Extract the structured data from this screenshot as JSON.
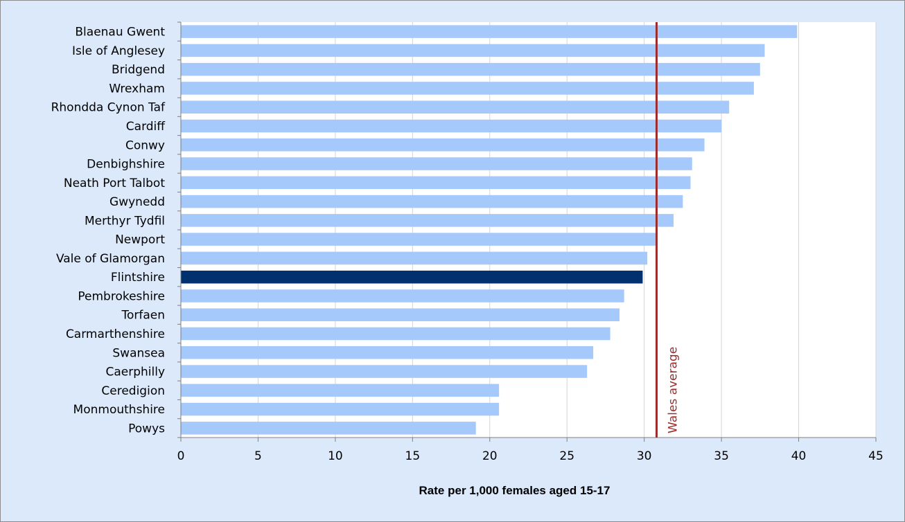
{
  "chart_data": {
    "type": "bar",
    "orientation": "horizontal",
    "categories": [
      "Blaenau Gwent",
      "Isle of Anglesey",
      "Bridgend",
      "Wrexham",
      "Rhondda Cynon Taf",
      "Cardiff",
      "Conwy",
      "Denbighshire",
      "Neath Port Talbot",
      "Gwynedd",
      "Merthyr Tydfil",
      "Newport",
      "Vale of Glamorgan",
      "Flintshire",
      "Pembrokeshire",
      "Torfaen",
      "Carmarthenshire",
      "Swansea",
      "Caerphilly",
      "Ceredigion",
      "Monmouthshire",
      "Powys"
    ],
    "values": [
      39.9,
      37.8,
      37.5,
      37.1,
      35.5,
      35.0,
      33.9,
      33.1,
      33.0,
      32.5,
      31.9,
      30.8,
      30.2,
      29.9,
      28.7,
      28.4,
      27.8,
      26.7,
      26.3,
      20.6,
      20.6,
      19.1
    ],
    "highlight": "Flintshire",
    "colors": {
      "bar": "#a6c9fb",
      "highlight": "#00306e",
      "reference": "#9b2d2d",
      "plot_bg": "#ffffff",
      "frame_bg": "#dbe9fb",
      "grid": "#d4d4d4"
    },
    "reference_line": {
      "value": 30.8,
      "label": "Wales average"
    },
    "xlim": [
      0,
      45
    ],
    "xticks": [
      0,
      5,
      10,
      15,
      20,
      25,
      30,
      35,
      40,
      45
    ],
    "title": "",
    "xlabel": "Rate per 1,000 females aged 15-17",
    "ylabel": "",
    "grid": "vertical",
    "legend": "none"
  }
}
